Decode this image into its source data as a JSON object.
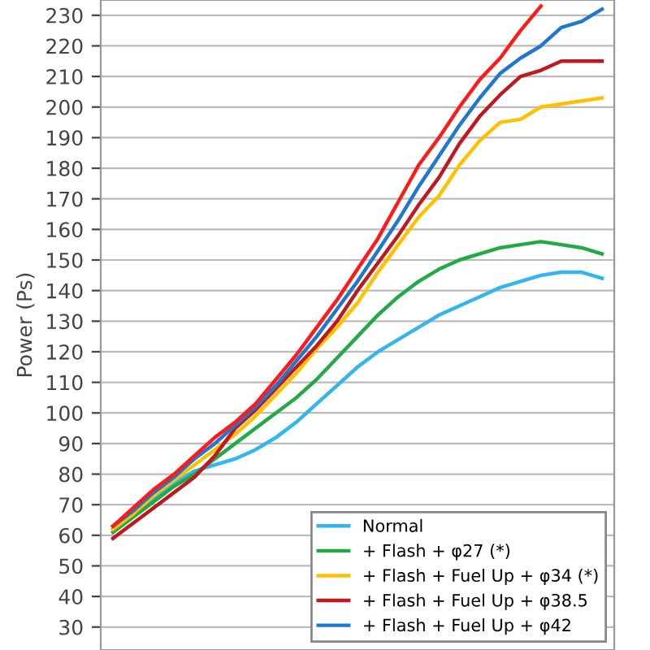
{
  "chart_data": {
    "type": "line",
    "ylabel": "Power (Ps)",
    "categories": [
      null,
      null,
      null,
      null,
      null,
      null,
      null,
      null,
      null,
      null,
      null,
      null,
      null,
      null,
      null,
      null,
      null,
      null,
      null,
      null,
      null,
      null,
      null,
      null,
      null
    ],
    "ylim": [
      22.5,
      235
    ],
    "yticks": [
      30,
      40,
      50,
      60,
      70,
      80,
      90,
      100,
      110,
      120,
      130,
      140,
      150,
      160,
      170,
      180,
      190,
      200,
      210,
      220,
      230
    ],
    "grid": "y",
    "legend": "bottom right",
    "marker": "none",
    "line_style": "solid",
    "series": [
      {
        "name": "Normal",
        "color": "#33b5ee",
        "values": [
          62,
          67,
          72,
          77,
          81,
          83,
          85,
          88,
          92,
          97,
          103,
          109,
          115,
          120,
          124,
          128,
          132,
          135,
          138,
          141,
          143,
          145,
          146,
          146,
          144
        ]
      },
      {
        "name": "+ Flash + φ27 (*)",
        "color": "#22aa44",
        "values": [
          61,
          66,
          71,
          76,
          80,
          85,
          90,
          95,
          100,
          105,
          111,
          118,
          125,
          132,
          138,
          143,
          147,
          150,
          152,
          154,
          155,
          156,
          155,
          154,
          152
        ]
      },
      {
        "name": "+ Flash + Fuel Up + φ34 (*)",
        "color": "#ffc000",
        "values": [
          62,
          67,
          73,
          78,
          83,
          88,
          93,
          99,
          106,
          113,
          121,
          128,
          136,
          146,
          155,
          164,
          171,
          181,
          189,
          195,
          196,
          200,
          201,
          202,
          203
        ]
      },
      {
        "name": "+ Flash + Fuel Up + φ38.5",
        "color": "#c0181e",
        "values": [
          59,
          64,
          69,
          74,
          79,
          86,
          95,
          101,
          108,
          115,
          122,
          130,
          140,
          149,
          158,
          168,
          177,
          188,
          197,
          204,
          210,
          212,
          215,
          215,
          215
        ]
      },
      {
        "name": "+ Flash + Fuel Up + φ42",
        "color": "#1f78d0",
        "values": [
          63,
          68,
          74,
          79,
          85,
          90,
          96,
          102,
          109,
          117,
          125,
          134,
          143,
          153,
          163,
          174,
          184,
          194,
          203,
          211,
          216,
          220,
          226,
          228,
          232
        ]
      },
      {
        "color": "#ff1a1a",
        "values": [
          63,
          69,
          75,
          80,
          86,
          92,
          97,
          103,
          111,
          119,
          128,
          137,
          147,
          157,
          169,
          181,
          190,
          200,
          209,
          216,
          225,
          233,
          null,
          null,
          null
        ]
      }
    ]
  }
}
